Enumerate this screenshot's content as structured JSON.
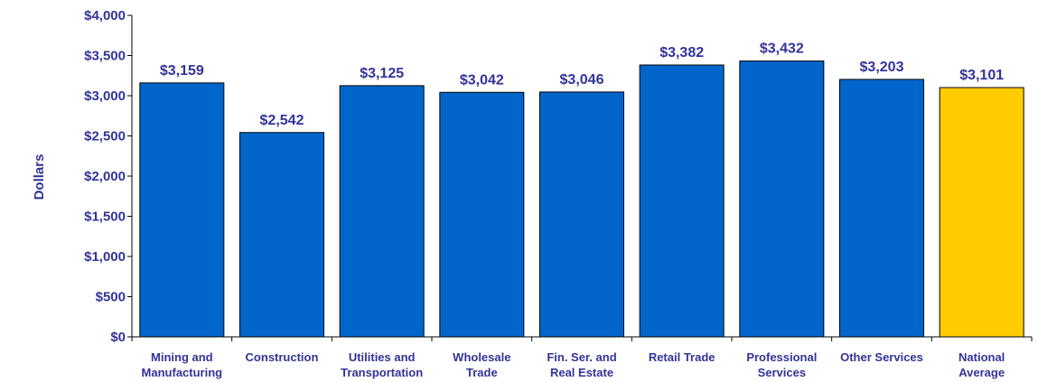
{
  "chart_data": {
    "type": "bar",
    "title": "",
    "xlabel": "",
    "ylabel": "Dollars",
    "ylim": [
      0,
      4000
    ],
    "yticks": [
      0,
      500,
      1000,
      1500,
      2000,
      2500,
      3000,
      3500,
      4000
    ],
    "ytick_labels": [
      "$0",
      "$500",
      "$1,000",
      "$1,500",
      "$2,000",
      "$2,500",
      "$3,000",
      "$3,500",
      "$4,000"
    ],
    "grid": false,
    "legend": "none",
    "categories": [
      [
        "Mining and",
        "Manufacturing"
      ],
      [
        "Construction"
      ],
      [
        "Utilities and",
        "Transportation"
      ],
      [
        "Wholesale",
        "Trade"
      ],
      [
        "Fin. Ser. and",
        "Real Estate"
      ],
      [
        "Retail Trade"
      ],
      [
        "Professional",
        "Services"
      ],
      [
        "Other Services"
      ],
      [
        "National",
        "Average"
      ]
    ],
    "values": [
      3159,
      2542,
      3125,
      3042,
      3046,
      3382,
      3432,
      3203,
      3101
    ],
    "data_labels": [
      "$3,159",
      "$2,542",
      "$3,125",
      "$3,042",
      "$3,046",
      "$3,382",
      "$3,432",
      "$3,203",
      "$3,101"
    ],
    "colors": {
      "bar": "#0066CC",
      "highlight_bar": "#FFCC00",
      "text": "#333399",
      "axis": "#000000"
    },
    "highlight_index": 8
  }
}
